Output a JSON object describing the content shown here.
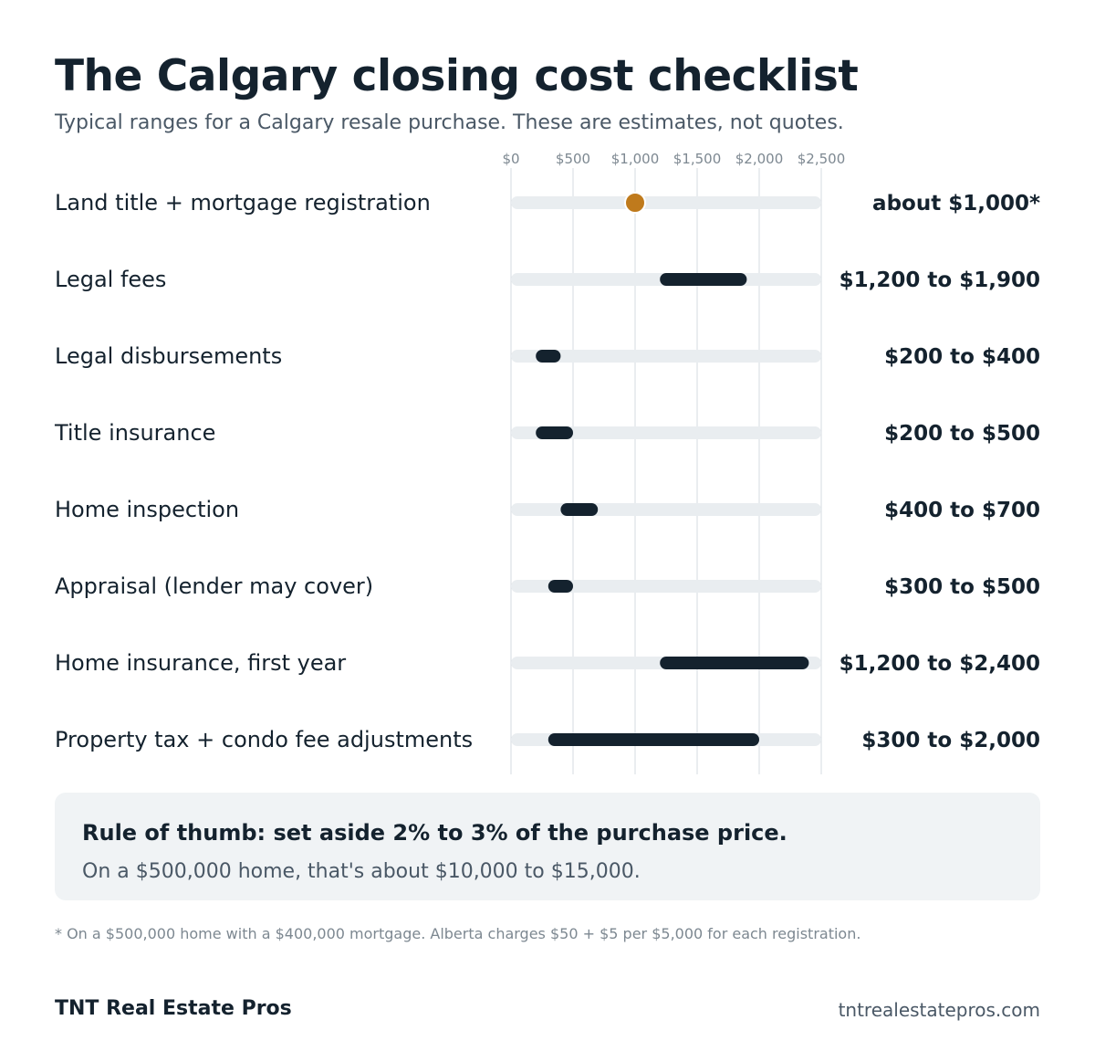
{
  "header": {
    "title": "The Calgary closing cost checklist",
    "subtitle": "Typical ranges for a Calgary resale purchase. These are estimates, not quotes."
  },
  "chart_data": {
    "type": "range",
    "x_range": [
      0,
      2500
    ],
    "x_ticks": [
      0,
      500,
      1000,
      1500,
      2000,
      2500
    ],
    "x_tick_labels": [
      "$0",
      "$500",
      "$1,000",
      "$1,500",
      "$2,000",
      "$2,500"
    ],
    "grid": true,
    "rows": [
      {
        "label": "Land title + mortgage registration",
        "kind": "point",
        "value": 1000,
        "value_label": "about $1,000*"
      },
      {
        "label": "Legal fees",
        "kind": "range",
        "low": 1200,
        "high": 1900,
        "value_label": "$1,200 to $1,900"
      },
      {
        "label": "Legal disbursements",
        "kind": "range",
        "low": 200,
        "high": 400,
        "value_label": "$200 to $400"
      },
      {
        "label": "Title insurance",
        "kind": "range",
        "low": 200,
        "high": 500,
        "value_label": "$200 to $500"
      },
      {
        "label": "Home inspection",
        "kind": "range",
        "low": 400,
        "high": 700,
        "value_label": "$400 to $700"
      },
      {
        "label": "Appraisal (lender may cover)",
        "kind": "range",
        "low": 300,
        "high": 500,
        "value_label": "$300 to $500"
      },
      {
        "label": "Home insurance, first year",
        "kind": "range",
        "low": 1200,
        "high": 2400,
        "value_label": "$1,200 to $2,400"
      },
      {
        "label": "Property tax + condo fee adjustments",
        "kind": "range",
        "low": 300,
        "high": 2000,
        "value_label": "$300 to $2,000"
      }
    ],
    "colors": {
      "range_bar": "#14222e",
      "point": "#bf7a1c",
      "track": "#e9edf0",
      "grid": "#d6dbe0"
    }
  },
  "callout": {
    "headline": "Rule of thumb: set aside 2% to 3% of the purchase price.",
    "body": "On a $500,000 home, that's about $10,000 to $15,000."
  },
  "footnote": "* On a $500,000 home with a $400,000 mortgage. Alberta charges $50 + $5 per $5,000 for each registration.",
  "footer": {
    "brand": "TNT Real Estate Pros",
    "website": "tntrealestatepros.com"
  }
}
